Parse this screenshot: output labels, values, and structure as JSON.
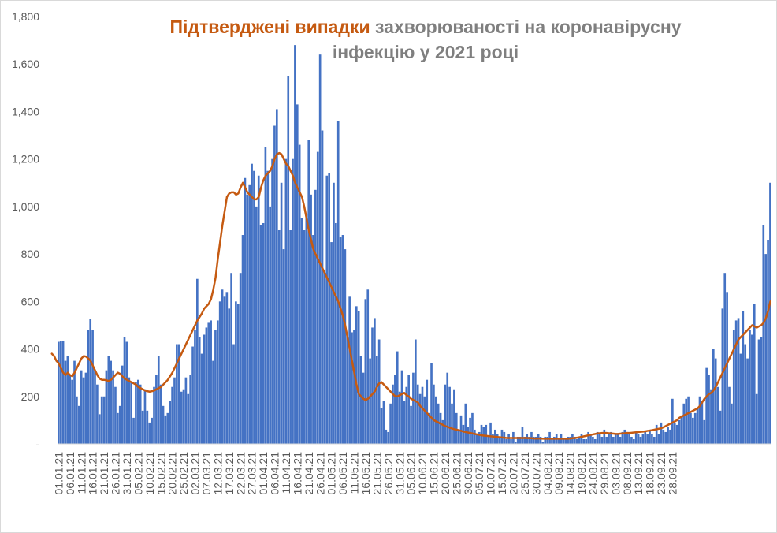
{
  "chart_data": {
    "type": "bar",
    "title_highlight": "Підтверджені випадки",
    "title_rest": "захворюваності на коронавірусну інфекцію у 2021 році",
    "ylim": [
      0,
      1800
    ],
    "y_ticks": [
      "-",
      "200",
      "400",
      "600",
      "800",
      "1,000",
      "1,200",
      "1,400",
      "1,600",
      "1,800"
    ],
    "y_tick_values": [
      0,
      200,
      400,
      600,
      800,
      1000,
      1200,
      1400,
      1600,
      1800
    ],
    "x_tick_labels": [
      "01.01.21",
      "06.01.21",
      "11.01.21",
      "16.01.21",
      "21.01.21",
      "26.01.21",
      "31.01.21",
      "05.02.21",
      "10.02.21",
      "15.02.21",
      "20.02.21",
      "25.02.21",
      "02.03.21",
      "07.03.21",
      "12.03.21",
      "17.03.21",
      "22.03.21",
      "27.03.21",
      "01.04.21",
      "06.04.21",
      "11.04.21",
      "16.04.21",
      "21.04.21",
      "26.04.21",
      "01.05.21",
      "06.05.21",
      "11.05.21",
      "16.05.21",
      "21.05.21",
      "26.05.21",
      "31.05.21",
      "05.06.21",
      "10.06.21",
      "15.06.21",
      "20.06.21",
      "25.06.21",
      "30.06.21",
      "05.07.21",
      "10.07.21",
      "15.07.21",
      "20.07.21",
      "25.07.21",
      "30.07.21",
      "04.08.21",
      "09.08.21",
      "14.08.21",
      "19.08.21",
      "24.08.21",
      "29.08.21",
      "03.09.21",
      "08.09.21",
      "13.09.21",
      "18.09.21",
      "23.09.21",
      "28.09.21"
    ],
    "grid": false,
    "legend": "none",
    "bar_color": "#4472c4",
    "line_color": "#c55a11",
    "series": [
      {
        "type": "bar",
        "values": [
          430,
          435,
          435,
          350,
          370,
          290,
          270,
          350,
          200,
          160,
          310,
          280,
          300,
          480,
          525,
          480,
          310,
          250,
          125,
          200,
          200,
          310,
          370,
          350,
          310,
          240,
          130,
          160,
          330,
          450,
          430,
          280,
          260,
          110,
          260,
          270,
          250,
          140,
          230,
          140,
          90,
          110,
          240,
          290,
          370,
          250,
          160,
          120,
          130,
          180,
          240,
          280,
          420,
          420,
          220,
          230,
          280,
          210,
          290,
          410,
          480,
          695,
          450,
          380,
          460,
          490,
          510,
          520,
          350,
          480,
          520,
          600,
          650,
          620,
          640,
          570,
          720,
          420,
          600,
          590,
          720,
          880,
          1120,
          1050,
          1090,
          1180,
          1150,
          1000,
          1130,
          920,
          930,
          1250,
          1150,
          1000,
          1200,
          1340,
          1410,
          900,
          1100,
          820,
          1200,
          1550,
          900,
          1200,
          1680,
          1430,
          1260,
          950,
          900,
          970,
          1280,
          1050,
          880,
          1070,
          1230,
          1640,
          1320,
          720,
          1130,
          1140,
          850,
          1100,
          930,
          1360,
          870,
          880,
          820,
          450,
          620,
          470,
          480,
          580,
          560,
          370,
          300,
          610,
          650,
          360,
          490,
          530,
          370,
          440,
          150,
          180,
          60,
          50,
          170,
          250,
          290,
          390,
          220,
          310,
          180,
          240,
          290,
          160,
          300,
          440,
          250,
          210,
          240,
          200,
          270,
          130,
          340,
          250,
          200,
          170,
          130,
          100,
          250,
          300,
          240,
          170,
          230,
          130,
          60,
          120,
          80,
          170,
          70,
          110,
          130,
          60,
          40,
          50,
          80,
          70,
          80,
          30,
          90,
          40,
          60,
          40,
          30,
          60,
          50,
          20,
          40,
          20,
          50,
          10,
          30,
          30,
          70,
          30,
          40,
          30,
          50,
          30,
          30,
          40,
          30,
          10,
          30,
          30,
          50,
          20,
          30,
          40,
          20,
          40,
          20,
          20,
          30,
          30,
          40,
          30,
          20,
          30,
          40,
          20,
          20,
          50,
          40,
          30,
          20,
          50,
          40,
          30,
          60,
          30,
          40,
          50,
          30,
          40,
          40,
          30,
          50,
          60,
          50,
          40,
          30,
          20,
          50,
          40,
          30,
          40,
          50,
          40,
          60,
          40,
          30,
          80,
          40,
          90,
          60,
          50,
          70,
          60,
          190,
          90,
          80,
          100,
          120,
          170,
          190,
          200,
          130,
          110,
          130,
          150,
          200,
          180,
          100,
          320,
          290,
          230,
          400,
          360,
          240,
          140,
          570,
          720,
          640,
          240,
          170,
          480,
          520,
          530,
          380,
          560,
          420,
          360,
          480,
          460,
          590,
          210,
          440,
          450,
          920,
          800,
          860,
          1100
        ]
      },
      {
        "type": "line",
        "values": [
          380,
          370,
          350,
          340,
          320,
          300,
          290,
          300,
          290,
          285,
          300,
          320,
          340,
          360,
          370,
          368,
          360,
          350,
          330,
          310,
          290,
          275,
          270,
          270,
          268,
          265,
          270,
          280,
          290,
          300,
          295,
          285,
          275,
          270,
          265,
          260,
          255,
          250,
          240,
          235,
          230,
          225,
          222,
          220,
          222,
          225,
          230,
          235,
          240,
          250,
          260,
          270,
          285,
          300,
          320,
          340,
          360,
          380,
          400,
          420,
          440,
          460,
          480,
          500,
          520,
          535,
          550,
          570,
          580,
          590,
          610,
          650,
          700,
          780,
          850,
          920,
          980,
          1040,
          1055,
          1060,
          1060,
          1050,
          1055,
          1080,
          1100,
          1080,
          1060,
          1050,
          1040,
          1030,
          1030,
          1040,
          1080,
          1110,
          1130,
          1140,
          1150,
          1170,
          1200,
          1220,
          1225,
          1220,
          1200,
          1180,
          1170,
          1150,
          1130,
          1100,
          1080,
          1060,
          1040,
          1000,
          950,
          900,
          860,
          820,
          800,
          780,
          760,
          740,
          720,
          700,
          680,
          660,
          640,
          620,
          600,
          570,
          540,
          500,
          450,
          400,
          350,
          300,
          250,
          210,
          200,
          190,
          185,
          190,
          200,
          210,
          220,
          240,
          255,
          260,
          250,
          240,
          230,
          220,
          210,
          200,
          200,
          205,
          210,
          215,
          205,
          200,
          190,
          185,
          180,
          175,
          160,
          150,
          140,
          130,
          120,
          110,
          100,
          95,
          90,
          85,
          80,
          75,
          72,
          68,
          65,
          62,
          60,
          58,
          55,
          52,
          50,
          48,
          46,
          44,
          42,
          40,
          38,
          36,
          35,
          34,
          33,
          32,
          31,
          30,
          29,
          28,
          27,
          26,
          25,
          25,
          25,
          25,
          25,
          25,
          25,
          25,
          25,
          25,
          24,
          24,
          23,
          23,
          23,
          23,
          22,
          22,
          22,
          22,
          22,
          22,
          22,
          22,
          22,
          22,
          22,
          22,
          23,
          24,
          25,
          26,
          28,
          30,
          32,
          34,
          36,
          38,
          40,
          42,
          44,
          45,
          46,
          46,
          46,
          45,
          44,
          43,
          42,
          42,
          43,
          44,
          45,
          46,
          46,
          47,
          48,
          49,
          50,
          51,
          52,
          53,
          55,
          56,
          58,
          60,
          62,
          64,
          66,
          70,
          75,
          80,
          85,
          90,
          95,
          100,
          110,
          115,
          120,
          125,
          130,
          135,
          140,
          145,
          150,
          160,
          175,
          190,
          200,
          210,
          215,
          225,
          240,
          260,
          280,
          300,
          320,
          340,
          360,
          380,
          400,
          420,
          440,
          450,
          460,
          470,
          480,
          490,
          500,
          495,
          490,
          495,
          500,
          510,
          530,
          560,
          600
        ]
      }
    ]
  }
}
